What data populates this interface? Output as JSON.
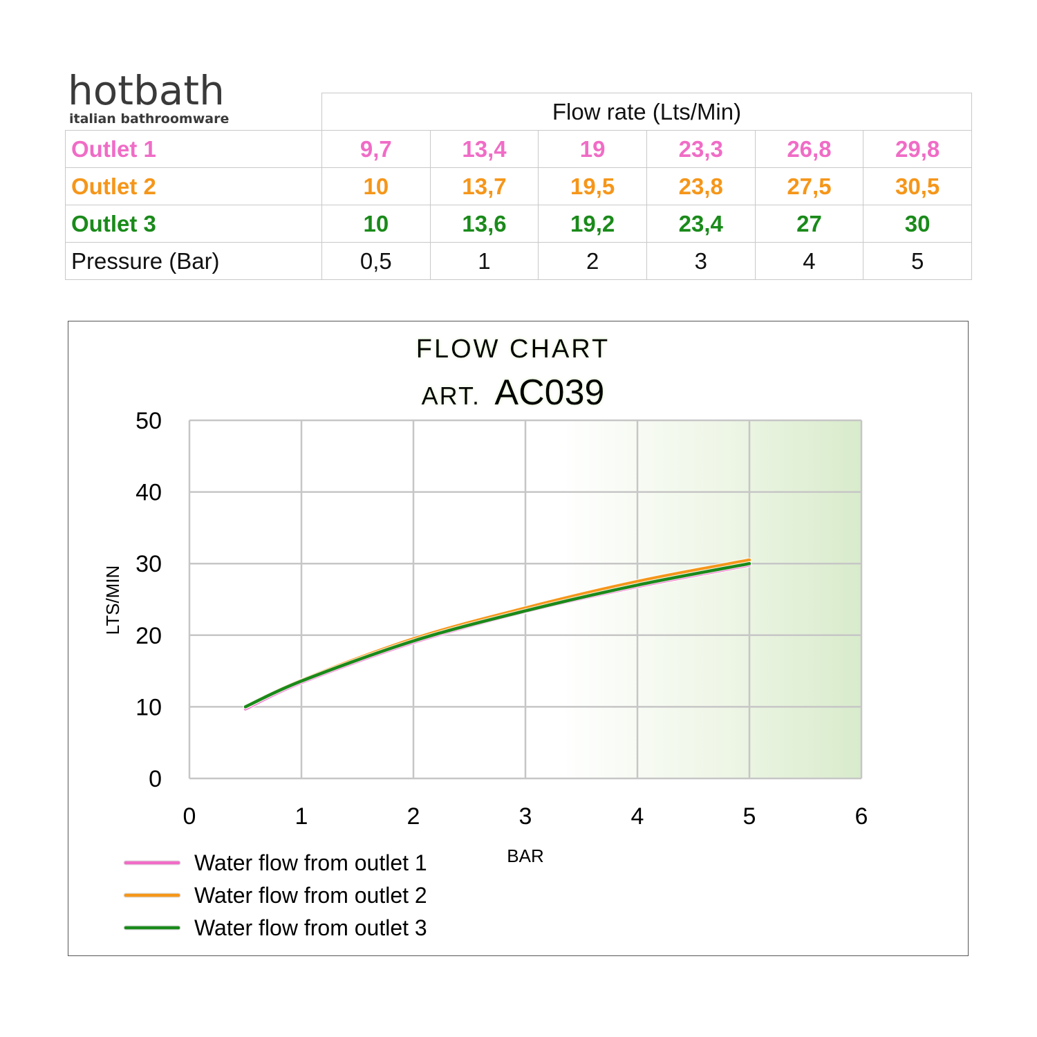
{
  "brand": {
    "name": "hotbath",
    "tagline": "italian bathroomware"
  },
  "table": {
    "header": "Flow rate (Lts/Min)",
    "rows": [
      {
        "label": "Outlet 1",
        "values": [
          "9,7",
          "13,4",
          "19",
          "23,3",
          "26,8",
          "29,8"
        ]
      },
      {
        "label": "Outlet 2",
        "values": [
          "10",
          "13,7",
          "19,5",
          "23,8",
          "27,5",
          "30,5"
        ]
      },
      {
        "label": "Outlet 3",
        "values": [
          "10",
          "13,6",
          "19,2",
          "23,4",
          "27",
          "30"
        ]
      },
      {
        "label": "Pressure (Bar)",
        "values": [
          "0,5",
          "1",
          "2",
          "3",
          "4",
          "5"
        ]
      }
    ]
  },
  "colors": {
    "outlet1": "#f06cc6",
    "outlet2": "#f5961a",
    "outlet3": "#1a8a1a"
  },
  "chart_data": {
    "type": "line",
    "title": "FLOW CHART",
    "subtitle_prefix": "ART.",
    "subtitle_code": "AC039",
    "xlabel": "BAR",
    "ylabel": "LTS/MIN",
    "xlim": [
      0,
      6
    ],
    "ylim": [
      0,
      50
    ],
    "xticks": [
      "0",
      "1",
      "2",
      "3",
      "4",
      "5",
      "6"
    ],
    "yticks": [
      "0",
      "10",
      "20",
      "30",
      "40",
      "50"
    ],
    "grid": true,
    "legend_position": "bottom-left",
    "x": [
      0.5,
      1,
      2,
      3,
      4,
      5
    ],
    "series": [
      {
        "name": "Water flow from outlet 1",
        "color": "#f06cc6",
        "values": [
          9.7,
          13.4,
          19,
          23.3,
          26.8,
          29.8
        ]
      },
      {
        "name": "Water flow from outlet 2",
        "color": "#f5961a",
        "values": [
          10,
          13.7,
          19.5,
          23.8,
          27.5,
          30.5
        ]
      },
      {
        "name": "Water flow from outlet 3",
        "color": "#1a8a1a",
        "values": [
          10,
          13.6,
          19.2,
          23.4,
          27,
          30
        ]
      }
    ]
  }
}
